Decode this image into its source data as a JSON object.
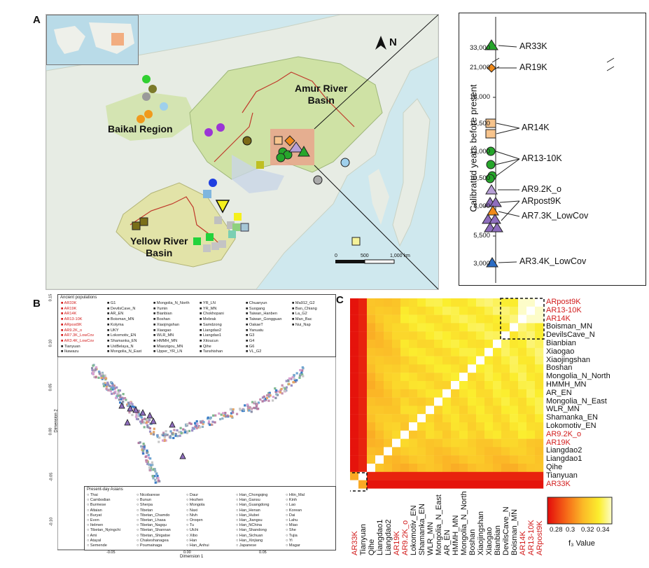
{
  "panel_labels": {
    "a": "A",
    "b": "B",
    "c": "C"
  },
  "map": {
    "north_symbol": "N",
    "regions": {
      "amur": "Amur River\nBasin",
      "baikal": "Baikal Region",
      "yellow": "Yellow River\nBasin"
    },
    "scale": {
      "zero": "0",
      "mid": "500",
      "end": "1,000 km"
    },
    "colors": {
      "water": "#cfe8ee",
      "land": "#e9ede8",
      "basin": "#cfe2a5",
      "river": "#c0392b",
      "highlight": "#e9a58c"
    }
  },
  "timeline": {
    "axis_label": "Calibrated years before present",
    "ticks": [
      "33,000",
      "21,000",
      "18,000",
      "15,500",
      "13,000",
      "10,500",
      "8,000",
      "5,500",
      "3,000"
    ],
    "labels": [
      "AR33K",
      "AR19K",
      "AR14K",
      "AR13-10K",
      "AR9.2K_o",
      "ARpost9K",
      "AR7.3K_LowCov",
      "AR3.4K_LowCov"
    ]
  },
  "pca": {
    "xlabel": "Dimension 1",
    "ylabel": "Dimension 2",
    "xticks": [
      "-0.05",
      "0.00",
      "0.05"
    ],
    "yticks": [
      "0.15",
      "0.10",
      "0.05",
      "0.00",
      "-0.05",
      "-0.10"
    ],
    "ancient_title": "Ancient populations",
    "ancient": [
      [
        "AR33K",
        "AR19K",
        "AR14K",
        "AR13-10K",
        "ARpost9K",
        "AR9.2K_o",
        "AR7.3K_LowCov",
        "AR3.4K_LowCov",
        "Tianyuan",
        "Ikawazu"
      ],
      [
        "G1",
        "DevilsCave_N",
        "AR_EN",
        "Boisman_MN",
        "Kolyma",
        "UKY",
        "Lokomotiv_EN",
        "Shamanka_EN",
        "UstBelaya_N",
        "Mongolia_N_East"
      ],
      [
        "Mongolia_N_North",
        "Yumin",
        "Bianbian",
        "Boshan",
        "Xiaojingshan",
        "Xiaogao",
        "WLR_MN",
        "HMMH_MN",
        "Miaozigou_MN",
        "Upper_YR_LN"
      ],
      [
        "YR_LN",
        "YR_MN",
        "Chokhopani",
        "Mebrak",
        "Samdzong",
        "Liangdao2",
        "Liangdao1",
        "Xitoucun",
        "Qihe",
        "Tanshishan"
      ],
      [
        "Chuanyun",
        "Suogang",
        "Taiwan_Hanben",
        "Taiwan_Gongguan",
        "OakaeT",
        "Yanuatu",
        "G3",
        "G4",
        "G6",
        "VL_G2"
      ],
      [
        "Ma912_G2",
        "Ban_Chiang",
        "La_G2",
        "Man_Bac",
        "Nui_Nap"
      ]
    ],
    "modern_title": "Present-day Asians",
    "modern": [
      [
        "Thai",
        "Cambodian",
        "Burmese",
        "Altaian",
        "Buryat",
        "Even",
        "Itelmen",
        "Tibetan_Nyingchi",
        "Ami",
        "Atayal",
        "Semende"
      ],
      [
        "Nicobarese",
        "Bunun",
        "Sherpa",
        "Tibetan",
        "Tibetan_Chamdo",
        "Tibetan_Lhasa",
        "Tibetan_Nagqu",
        "Tibetan_Shannan",
        "Tibetan_Shigatse",
        "Chakeshanagea",
        "Poumainaga"
      ],
      [
        "Daur",
        "Hezhen",
        "Mongola",
        "Naxi",
        "Nivh",
        "Oroqen",
        "Tu",
        "Ulchi",
        "Xibo",
        "Han",
        "Han_Anhui"
      ],
      [
        "Han_Chongqing",
        "Han_Gansu",
        "Han_Guangdong",
        "Han_Henan",
        "Han_Hubei",
        "Han_Jiangsu",
        "Han_NChina",
        "Han_Shandong",
        "Han_Sichuan",
        "Han_Xinjiang",
        "Japanese"
      ],
      [
        "Htin_Mal",
        "Kinh",
        "Lao",
        "Korean",
        "Dai",
        "Lahu",
        "Miao",
        "She",
        "Tujia",
        "Yi",
        "Magar"
      ]
    ],
    "red_entries": [
      "AR33K",
      "AR19K",
      "AR14K",
      "AR13-10K",
      "ARpost9K",
      "AR9.2K_o",
      "AR7.3K_LowCov",
      "AR3.4K_LowCov"
    ]
  },
  "heatmap": {
    "labels": [
      "ARpost9K",
      "AR13-10K",
      "AR14K",
      "Boisman_MN",
      "DevilsCave_N",
      "Bianbian",
      "Xiaogao",
      "Xiaojingshan",
      "Boshan",
      "Mongolia_N_North",
      "HMMH_MN",
      "AR_EN",
      "Mongolia_N_East",
      "WLR_MN",
      "Shamanka_EN",
      "Lokomotiv_EN",
      "AR9.2K_o",
      "AR19K",
      "Liangdao2",
      "Liangdao1",
      "Qihe",
      "Tianyuan",
      "AR33K"
    ],
    "red_labels": [
      "ARpost9K",
      "AR13-10K",
      "AR14K",
      "AR9.2K_o",
      "AR19K",
      "AR33K"
    ],
    "colorbar": {
      "ticks": [
        "0.28",
        "0.3",
        "0.32",
        "0.34"
      ],
      "label": "f₃ Value",
      "min": 0.27,
      "max": 0.35
    }
  }
}
